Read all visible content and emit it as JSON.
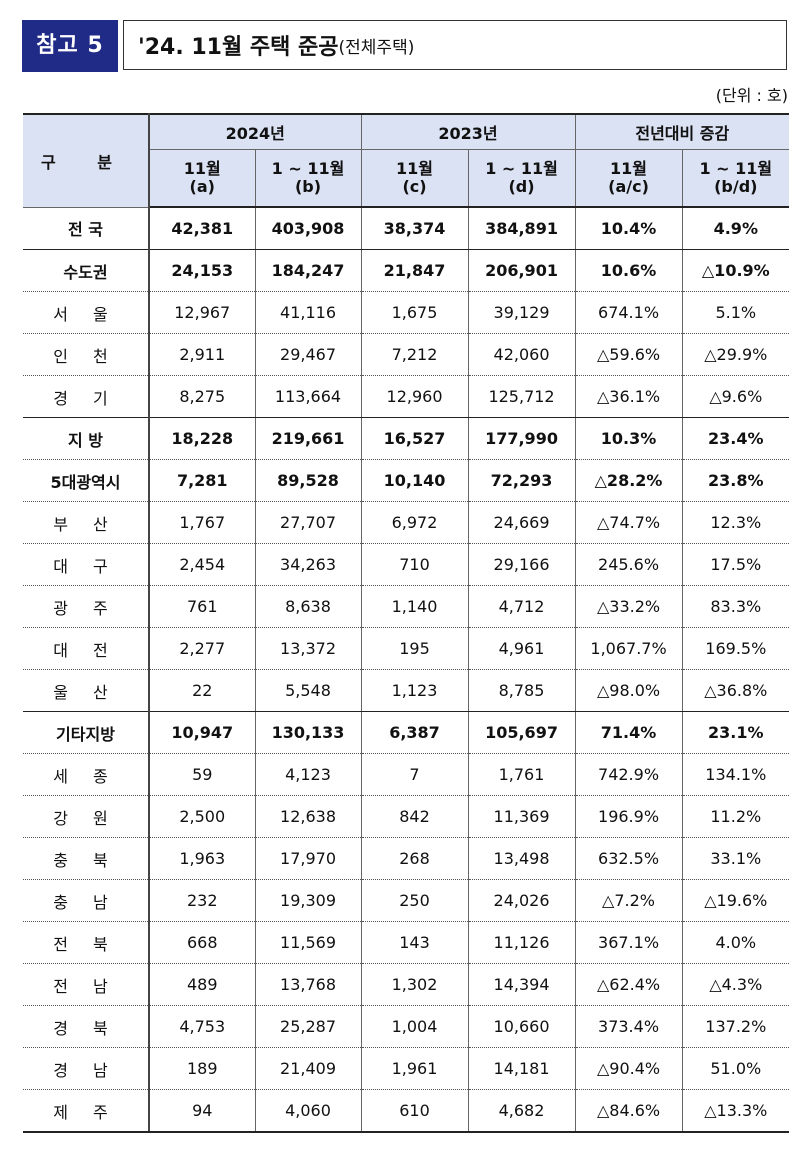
{
  "badge": "참고 5",
  "title": {
    "main": "'24. 11월 주택 준공",
    "sub": "(전체주택)"
  },
  "unit": "(단위 : 호)",
  "table": {
    "gubun": "구 분",
    "groups": [
      "2024년",
      "2023년",
      "전년대비 증감"
    ],
    "subheaders": [
      {
        "line1": "11월",
        "line2": "(a)"
      },
      {
        "line1": "1 ~ 11월",
        "line2": "(b)"
      },
      {
        "line1": "11월",
        "line2": "(c)"
      },
      {
        "line1": "1 ~ 11월",
        "line2": "(d)"
      },
      {
        "line1": "11월",
        "line2": "(a/c)"
      },
      {
        "line1": "1 ~ 11월",
        "line2": "(b/d)"
      }
    ],
    "rows": [
      {
        "label": "전 국",
        "bold": true,
        "values": [
          "42,381",
          "403,908",
          "38,374",
          "384,891",
          "10.4%",
          "4.9%"
        ]
      },
      {
        "label": "수도권",
        "bold": true,
        "values": [
          "24,153",
          "184,247",
          "21,847",
          "206,901",
          "10.6%",
          "△10.9%"
        ]
      },
      {
        "label": "서 울",
        "bold": false,
        "values": [
          "12,967",
          "41,116",
          "1,675",
          "39,129",
          "674.1%",
          "5.1%"
        ]
      },
      {
        "label": "인 천",
        "bold": false,
        "values": [
          "2,911",
          "29,467",
          "7,212",
          "42,060",
          "△59.6%",
          "△29.9%"
        ]
      },
      {
        "label": "경 기",
        "bold": false,
        "values": [
          "8,275",
          "113,664",
          "12,960",
          "125,712",
          "△36.1%",
          "△9.6%"
        ]
      },
      {
        "label": "지 방",
        "bold": true,
        "values": [
          "18,228",
          "219,661",
          "16,527",
          "177,990",
          "10.3%",
          "23.4%"
        ]
      },
      {
        "label": "5대광역시",
        "bold": true,
        "values": [
          "7,281",
          "89,528",
          "10,140",
          "72,293",
          "△28.2%",
          "23.8%"
        ]
      },
      {
        "label": "부 산",
        "bold": false,
        "values": [
          "1,767",
          "27,707",
          "6,972",
          "24,669",
          "△74.7%",
          "12.3%"
        ]
      },
      {
        "label": "대 구",
        "bold": false,
        "values": [
          "2,454",
          "34,263",
          "710",
          "29,166",
          "245.6%",
          "17.5%"
        ]
      },
      {
        "label": "광 주",
        "bold": false,
        "values": [
          "761",
          "8,638",
          "1,140",
          "4,712",
          "△33.2%",
          "83.3%"
        ]
      },
      {
        "label": "대 전",
        "bold": false,
        "values": [
          "2,277",
          "13,372",
          "195",
          "4,961",
          "1,067.7%",
          "169.5%"
        ]
      },
      {
        "label": "울 산",
        "bold": false,
        "values": [
          "22",
          "5,548",
          "1,123",
          "8,785",
          "△98.0%",
          "△36.8%"
        ]
      },
      {
        "label": "기타지방",
        "bold": true,
        "values": [
          "10,947",
          "130,133",
          "6,387",
          "105,697",
          "71.4%",
          "23.1%"
        ]
      },
      {
        "label": "세 종",
        "bold": false,
        "values": [
          "59",
          "4,123",
          "7",
          "1,761",
          "742.9%",
          "134.1%"
        ]
      },
      {
        "label": "강 원",
        "bold": false,
        "values": [
          "2,500",
          "12,638",
          "842",
          "11,369",
          "196.9%",
          "11.2%"
        ]
      },
      {
        "label": "충 북",
        "bold": false,
        "values": [
          "1,963",
          "17,970",
          "268",
          "13,498",
          "632.5%",
          "33.1%"
        ]
      },
      {
        "label": "충 남",
        "bold": false,
        "values": [
          "232",
          "19,309",
          "250",
          "24,026",
          "△7.2%",
          "△19.6%"
        ]
      },
      {
        "label": "전 북",
        "bold": false,
        "values": [
          "668",
          "11,569",
          "143",
          "11,126",
          "367.1%",
          "4.0%"
        ]
      },
      {
        "label": "전 남",
        "bold": false,
        "values": [
          "489",
          "13,768",
          "1,302",
          "14,394",
          "△62.4%",
          "△4.3%"
        ]
      },
      {
        "label": "경 북",
        "bold": false,
        "values": [
          "4,753",
          "25,287",
          "1,004",
          "10,660",
          "373.4%",
          "137.2%"
        ]
      },
      {
        "label": "경 남",
        "bold": false,
        "values": [
          "189",
          "21,409",
          "1,961",
          "14,181",
          "△90.4%",
          "51.0%"
        ]
      },
      {
        "label": "제 주",
        "bold": false,
        "values": [
          "94",
          "4,060",
          "610",
          "4,682",
          "△84.6%",
          "△13.3%"
        ]
      }
    ]
  }
}
